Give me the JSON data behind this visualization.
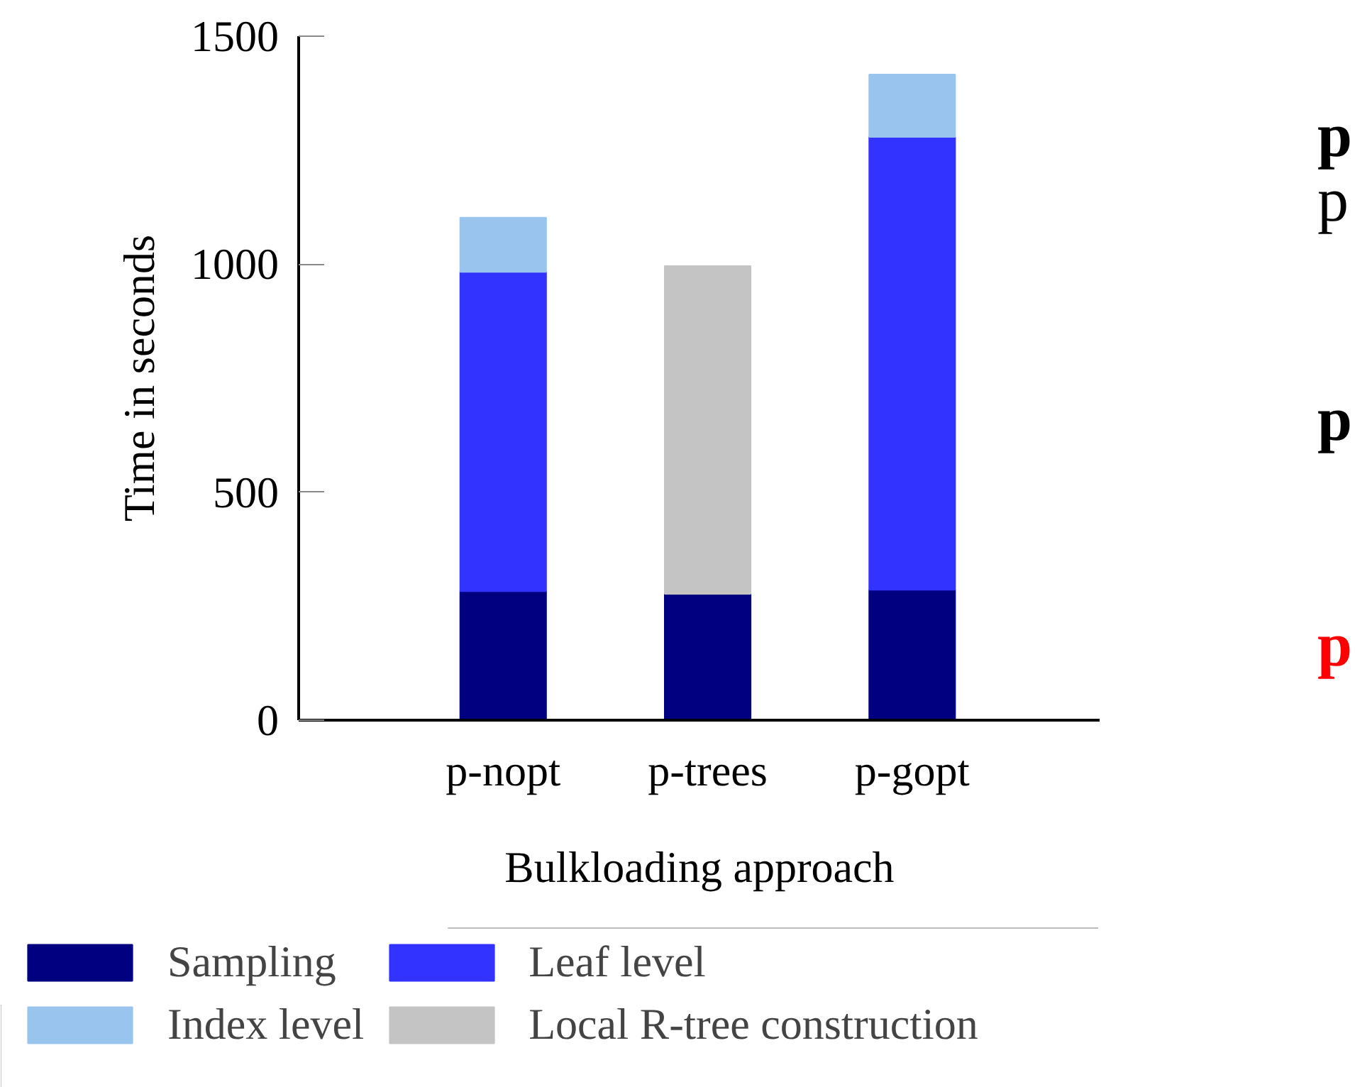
{
  "chart_data": {
    "type": "bar",
    "stacked": true,
    "categories": [
      "p-nopt",
      "p-trees",
      "p-gopt"
    ],
    "xlabel": "Bulkloading approach",
    "ylabel": "Time in seconds",
    "ylim": [
      0,
      1500
    ],
    "yticks": [
      0,
      500,
      1000,
      1500
    ],
    "grid": false,
    "legend": "bottom",
    "series": [
      {
        "name": "Sampling",
        "color": "#000080",
        "values": [
          283,
          277,
          286
        ]
      },
      {
        "name": "Leaf level",
        "color": "#3333ff",
        "values": [
          700,
          null,
          993
        ]
      },
      {
        "name": "Index level",
        "color": "#99c4ee",
        "values": [
          119,
          null,
          137
        ]
      },
      {
        "name": "Local R-tree construction",
        "color": "#c4c4c4",
        "values": [
          null,
          719,
          null
        ]
      }
    ],
    "annotations": [
      "p",
      "p",
      "p",
      "p"
    ]
  }
}
